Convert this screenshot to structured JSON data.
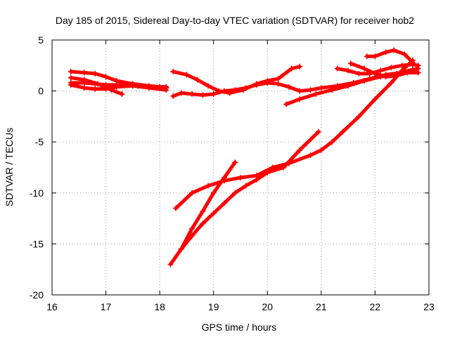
{
  "chart_data": {
    "type": "scatter",
    "title": "Day 185 of 2015, Sidereal Day-to-day VTEC variation (SDTVAR) for receiver hob2",
    "xlabel": "GPS time / hours",
    "ylabel": "SDTVAR / TECUs",
    "xlim": [
      16,
      23
    ],
    "ylim": [
      -20,
      5
    ],
    "x_ticks": [
      16,
      17,
      18,
      19,
      20,
      21,
      22,
      23
    ],
    "y_ticks": [
      -20,
      -15,
      -10,
      -5,
      0,
      5
    ],
    "grid": true,
    "legend": "none",
    "color": "#ff0000",
    "series": [
      {
        "x": [
          16.35,
          16.6,
          16.8,
          17.0,
          17.2,
          17.5,
          17.8,
          18.0,
          18.12
        ],
        "y": [
          1.9,
          1.8,
          1.7,
          1.4,
          1.0,
          0.7,
          0.5,
          0.4,
          0.3
        ]
      },
      {
        "x": [
          16.35,
          16.6,
          16.85,
          17.1,
          17.3
        ],
        "y": [
          1.3,
          1.1,
          0.7,
          0.1,
          -0.3
        ]
      },
      {
        "x": [
          16.35,
          16.6,
          16.8,
          17.0,
          17.2,
          17.4,
          17.6,
          17.8,
          18.0,
          18.12
        ],
        "y": [
          0.8,
          0.8,
          0.7,
          0.6,
          0.6,
          0.6,
          0.5,
          0.4,
          0.4,
          0.4
        ]
      },
      {
        "x": [
          16.35,
          16.6,
          16.8,
          17.0,
          17.2,
          17.5,
          17.8,
          18.12
        ],
        "y": [
          0.6,
          0.3,
          0.2,
          0.2,
          0.4,
          0.5,
          0.3,
          0.1
        ]
      },
      {
        "x": [
          18.25,
          18.5,
          18.7,
          18.9,
          19.1,
          19.3,
          19.55,
          19.8,
          20.0,
          20.2,
          20.45,
          20.6
        ],
        "y": [
          1.9,
          1.6,
          1.1,
          0.5,
          0.0,
          -0.2,
          0.1,
          0.7,
          1.0,
          1.2,
          2.2,
          2.4
        ]
      },
      {
        "x": [
          18.25,
          18.4,
          18.6,
          18.8,
          19.0,
          19.2,
          19.4,
          19.6,
          19.8,
          20.0,
          20.2,
          20.4,
          20.6,
          20.8,
          21.0,
          21.3,
          21.6,
          21.9,
          22.2,
          22.5,
          22.8
        ],
        "y": [
          -0.5,
          -0.2,
          -0.3,
          -0.4,
          -0.3,
          0.0,
          0.1,
          0.3,
          0.6,
          0.8,
          0.7,
          0.4,
          0.0,
          0.1,
          0.3,
          0.5,
          0.8,
          1.2,
          1.6,
          1.8,
          1.8
        ]
      },
      {
        "x": [
          18.3,
          18.6,
          18.9,
          19.2,
          19.5,
          19.8,
          20.1,
          20.4,
          20.8,
          21.0,
          21.2,
          21.4,
          21.7,
          22.0,
          22.3,
          22.5,
          22.7
        ],
        "y": [
          -11.5,
          -10.0,
          -9.3,
          -8.8,
          -8.5,
          -8.3,
          -7.5,
          -7.1,
          -6.3,
          -5.8,
          -5.0,
          -4.0,
          -2.5,
          -0.8,
          0.8,
          2.0,
          3.0
        ]
      },
      {
        "x": [
          18.2,
          18.4,
          18.6,
          18.8,
          19.0,
          19.2,
          19.4,
          19.6,
          19.8,
          20.0,
          20.3,
          20.6,
          20.95
        ],
        "y": [
          -17.0,
          -15.5,
          -14.2,
          -13.0,
          -12.0,
          -11.0,
          -10.0,
          -9.3,
          -8.7,
          -8.0,
          -7.5,
          -5.8,
          -4.0
        ]
      },
      {
        "x": [
          18.4,
          18.6,
          18.8,
          19.0,
          19.2,
          19.4
        ],
        "y": [
          -15.5,
          -13.5,
          -11.8,
          -10.0,
          -8.5,
          -7.0
        ]
      },
      {
        "x": [
          20.35,
          20.6,
          20.9,
          21.2,
          21.5,
          21.8,
          22.1,
          22.4,
          22.7,
          22.8
        ],
        "y": [
          -1.3,
          -0.8,
          -0.3,
          0.1,
          0.5,
          1.0,
          1.4,
          1.7,
          2.1,
          2.2
        ]
      },
      {
        "x": [
          21.3,
          21.5,
          21.7,
          21.9,
          22.1,
          22.3,
          22.5,
          22.7,
          22.8
        ],
        "y": [
          2.2,
          2.0,
          1.7,
          1.7,
          2.0,
          2.3,
          2.5,
          2.6,
          2.5
        ]
      },
      {
        "x": [
          21.55,
          21.8,
          22.0,
          22.2,
          22.4,
          22.6,
          22.75
        ],
        "y": [
          2.7,
          2.2,
          1.7,
          1.4,
          1.5,
          1.8,
          2.0
        ]
      },
      {
        "x": [
          21.85,
          22.0,
          22.2,
          22.35,
          22.55,
          22.7
        ],
        "y": [
          3.4,
          3.4,
          3.8,
          4.0,
          3.6,
          2.8
        ]
      }
    ]
  }
}
